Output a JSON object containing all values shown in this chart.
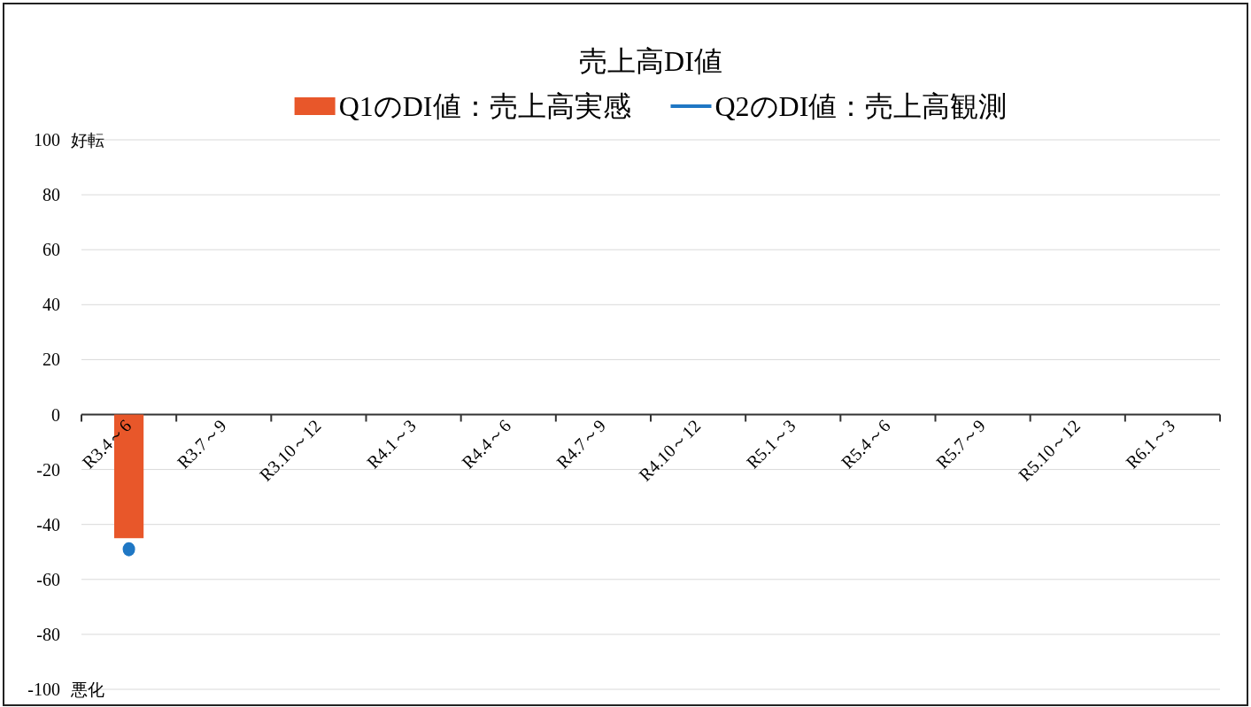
{
  "chart_data": {
    "type": "bar",
    "title": "売上高DI値",
    "categories": [
      "R3.4～6",
      "R3.7～9",
      "R3.10～12",
      "R4.1～3",
      "R4.4～6",
      "R4.7～9",
      "R4.10～12",
      "R5.1～3",
      "R5.4～6",
      "R5.7～9",
      "R5.10～12",
      "R6.1～3"
    ],
    "series": [
      {
        "name": "Q1のDI値：売上高実感",
        "color": "#e8572a",
        "values": [
          -45,
          null,
          null,
          null,
          null,
          null,
          null,
          null,
          null,
          null,
          null,
          null
        ]
      },
      {
        "name": "Q2のDI値：売上高観測",
        "type": "line",
        "marker": "circle",
        "color": "#1f77c4",
        "values": [
          -49,
          null,
          null,
          null,
          null,
          null,
          null,
          null,
          null,
          null,
          null,
          null
        ]
      }
    ],
    "ylim": [
      -100,
      100
    ],
    "yticks": [
      -100,
      -80,
      -60,
      -40,
      -20,
      0,
      20,
      40,
      60,
      80,
      100
    ],
    "grid": "y",
    "legend": "top",
    "annotations": [
      "好転",
      "悪化"
    ]
  }
}
